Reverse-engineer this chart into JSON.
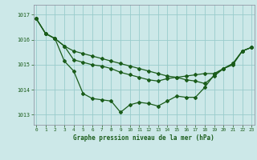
{
  "background_color": "#cce8e8",
  "grid_color": "#99cccc",
  "line_color": "#1a5c1a",
  "title": "Graphe pression niveau de la mer (hPa)",
  "xlabel_ticks": [
    0,
    1,
    2,
    3,
    4,
    5,
    6,
    7,
    8,
    9,
    10,
    11,
    12,
    13,
    14,
    15,
    16,
    17,
    18,
    19,
    20,
    21,
    22,
    23
  ],
  "ylim": [
    1012.6,
    1017.4
  ],
  "yticks": [
    1013,
    1014,
    1015,
    1016,
    1017
  ],
  "xlim": [
    -0.3,
    23.3
  ],
  "series": [
    [
      1016.85,
      1016.25,
      1016.05,
      1015.75,
      1015.55,
      1015.45,
      1015.35,
      1015.25,
      1015.15,
      1015.05,
      1014.95,
      1014.85,
      1014.75,
      1014.65,
      1014.55,
      1014.5,
      1014.4,
      1014.35,
      1014.25,
      1014.55,
      1014.85,
      1015.05,
      1015.55,
      1015.7
    ],
    [
      1016.85,
      1016.25,
      1016.05,
      1015.75,
      1015.2,
      1015.1,
      1015.0,
      1014.95,
      1014.85,
      1014.7,
      1014.6,
      1014.5,
      1014.4,
      1014.35,
      1014.45,
      1014.5,
      1014.55,
      1014.6,
      1014.65,
      1014.65,
      1014.85,
      1015.05,
      1015.55,
      1015.7
    ],
    [
      1016.85,
      1016.25,
      1016.05,
      1015.15,
      1014.75,
      1013.85,
      1013.65,
      1013.6,
      1013.55,
      1013.1,
      1013.4,
      1013.5,
      1013.45,
      1013.35,
      1013.55,
      1013.75,
      1013.7,
      1013.7,
      1014.1,
      1014.6,
      1014.85,
      1015.0,
      1015.55,
      1015.7
    ]
  ]
}
